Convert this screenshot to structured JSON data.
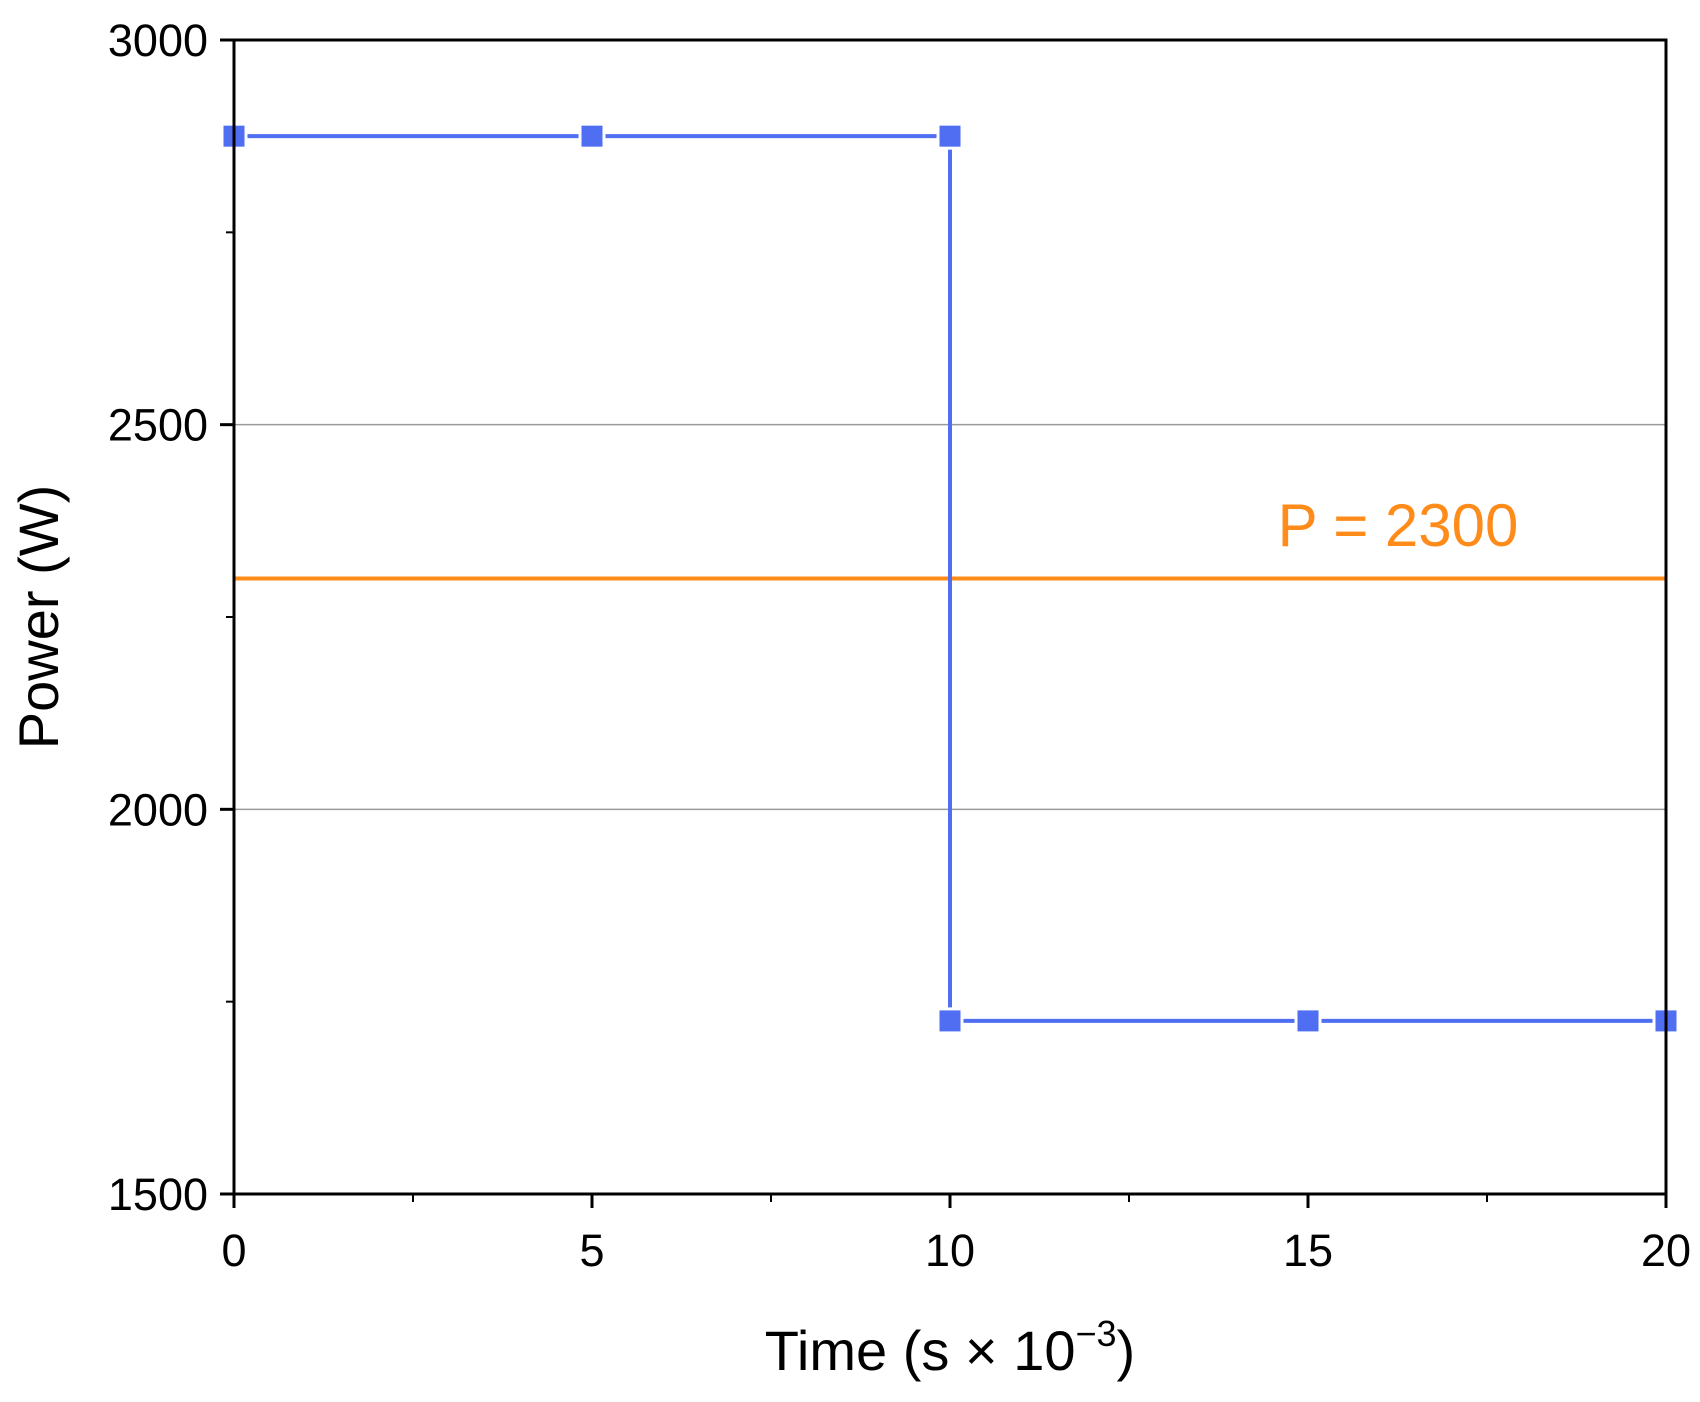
{
  "chart_data": {
    "type": "line",
    "xlabel": "Time (s × 10",
    "xlabel_exponent": "−3",
    "xlabel_close": ")",
    "ylabel": "Power (W)",
    "xlim": [
      0,
      20
    ],
    "ylim": [
      1500,
      3000
    ],
    "x_ticks": [
      0,
      5,
      10,
      15,
      20
    ],
    "x_tick_labels": [
      "0",
      "5",
      "10",
      "15",
      "20"
    ],
    "x_minor_ticks": [
      2.5,
      7.5,
      12.5,
      17.5
    ],
    "y_ticks": [
      1500,
      2000,
      2500,
      3000
    ],
    "y_tick_labels": [
      "1500",
      "2000",
      "2500",
      "3000"
    ],
    "y_minor_ticks": [
      1750,
      2250,
      2750
    ],
    "grid": "horizontal major lines",
    "legend": "none",
    "series": [
      {
        "color": "#4f6ef2",
        "marker": "square",
        "points": [
          {
            "x": 0,
            "y": 2875
          },
          {
            "x": 5,
            "y": 2875
          },
          {
            "x": 10,
            "y": 2875
          },
          {
            "x": 10,
            "y": 1725
          },
          {
            "x": 15,
            "y": 1725
          },
          {
            "x": 20,
            "y": 1725
          }
        ]
      }
    ],
    "reference_line": {
      "y": 2300,
      "label": "P = 2300",
      "color": "#ff8c1a"
    }
  }
}
